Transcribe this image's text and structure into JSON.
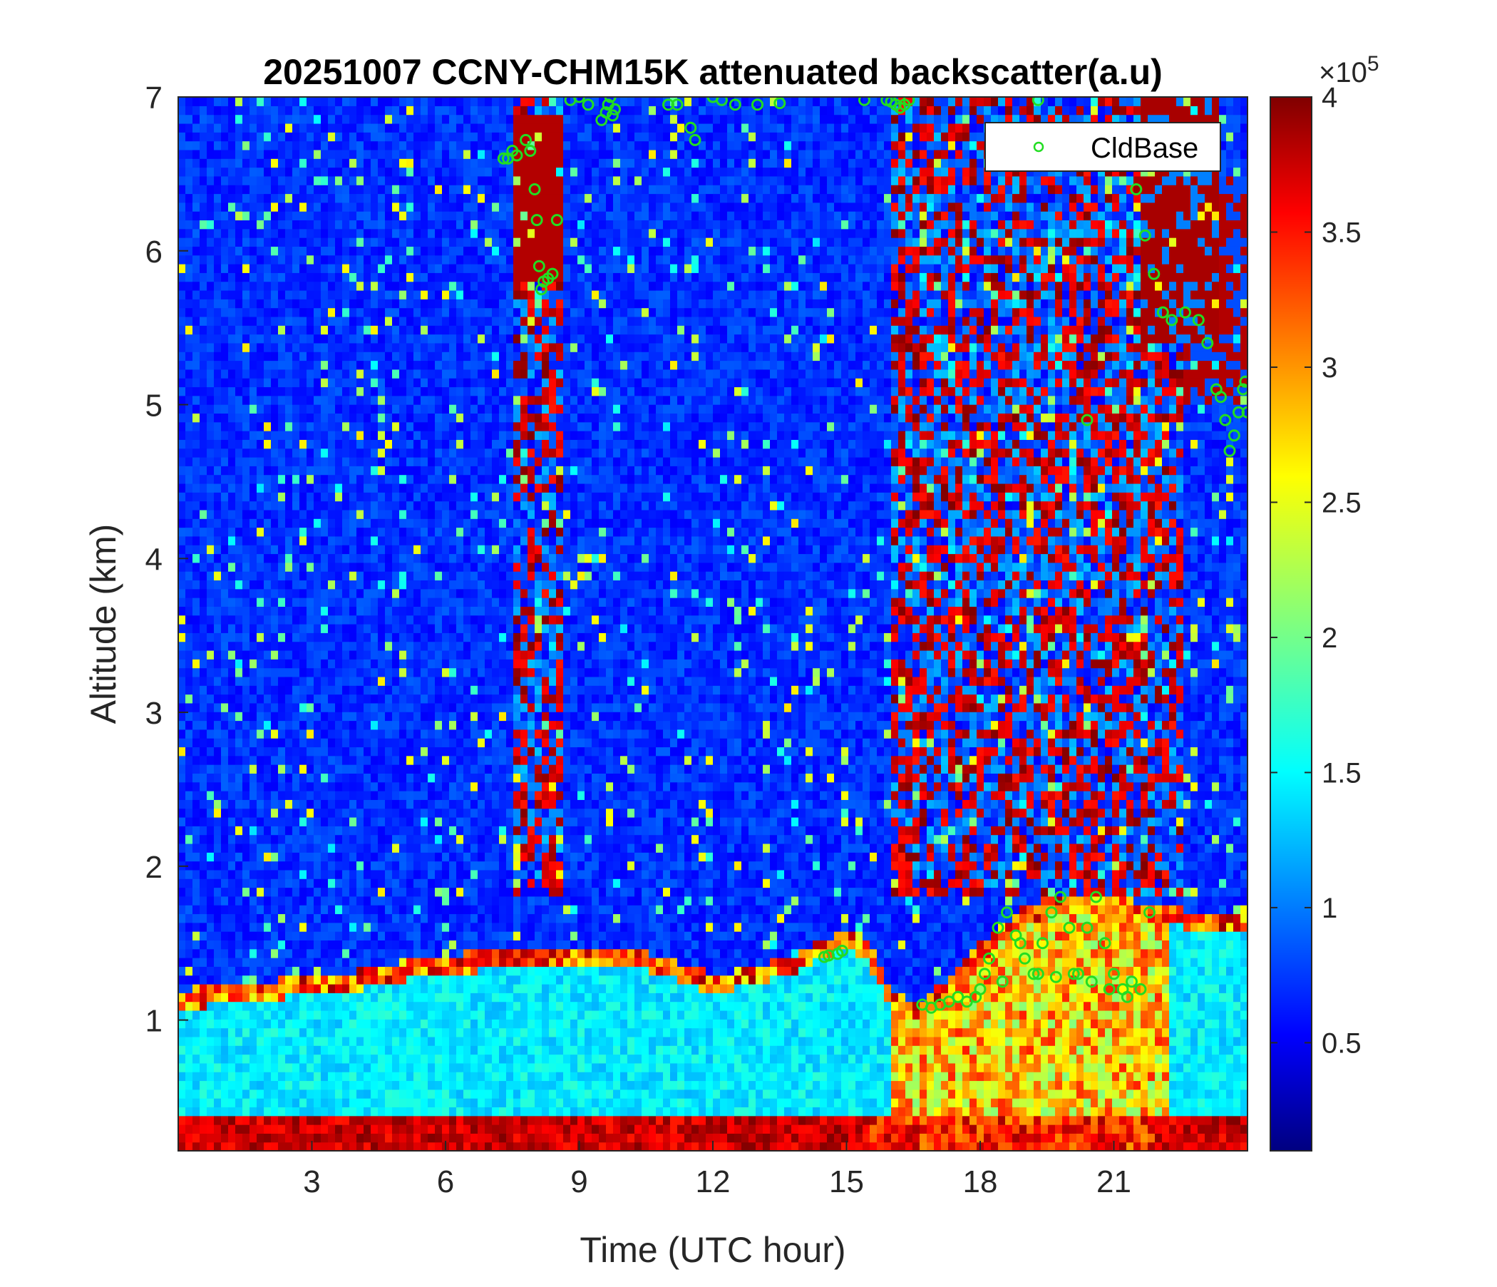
{
  "chart_data": {
    "type": "heatmap",
    "title": "20251007 CCNY-CHM15K attenuated backscatter(a.u)",
    "xlabel": "Time (UTC hour)",
    "ylabel": "Altitude (km)",
    "xlim": [
      0,
      24
    ],
    "ylim": [
      0.15,
      7
    ],
    "x_ticks": [
      3,
      6,
      9,
      12,
      15,
      18,
      21
    ],
    "y_ticks": [
      1,
      2,
      3,
      4,
      5,
      6,
      7
    ],
    "colormap": "jet",
    "colorbar": {
      "ticks": [
        0.5,
        1,
        1.5,
        2,
        2.5,
        3,
        3.5,
        4
      ],
      "tick_labels": [
        "0.5",
        "1",
        "1.5",
        "2",
        "2.5",
        "3",
        "3.5",
        "4"
      ],
      "exponent_prefix": "×10",
      "exponent_power": "5",
      "range": [
        0.1,
        4
      ]
    },
    "legend": {
      "entries": [
        "CldBase"
      ],
      "position": "top-right",
      "marker_color": "#22dd22"
    },
    "boundary_layer_top_km": {
      "hours": [
        0,
        1,
        2,
        3,
        4,
        5,
        6,
        7,
        8,
        9,
        10,
        11,
        12,
        13,
        14,
        15,
        15.5,
        16,
        16.5,
        17,
        18,
        19,
        20,
        21,
        22,
        23,
        24
      ],
      "values": [
        1.2,
        1.22,
        1.25,
        1.3,
        1.32,
        1.38,
        1.42,
        1.45,
        1.47,
        1.48,
        1.48,
        1.4,
        1.3,
        1.35,
        1.45,
        1.6,
        1.5,
        1.2,
        1.1,
        1.2,
        1.5,
        1.75,
        1.82,
        1.8,
        1.75,
        1.7,
        1.68
      ]
    },
    "series": [
      {
        "name": "CldBase",
        "type": "scatter",
        "x": [
          7.3,
          7.4,
          7.5,
          7.6,
          7.8,
          7.9,
          8.0,
          8.05,
          8.1,
          8.15,
          8.2,
          8.3,
          8.4,
          8.5,
          8.8,
          9.0,
          9.2,
          9.5,
          9.6,
          9.65,
          9.7,
          9.75,
          9.8,
          11.0,
          11.2,
          11.5,
          11.6,
          12.0,
          12.2,
          12.5,
          13.0,
          13.5,
          14.5,
          14.6,
          14.8,
          14.9,
          15.4,
          15.9,
          16.0,
          16.1,
          16.2,
          16.3,
          16.4,
          16.7,
          16.9,
          17.1,
          17.3,
          17.5,
          17.7,
          17.9,
          18.0,
          18.2,
          18.4,
          18.6,
          18.8,
          19.0,
          19.2,
          19.4,
          19.6,
          19.8,
          20.0,
          20.2,
          20.4,
          20.6,
          20.8,
          21.0,
          21.2,
          21.4,
          21.6,
          21.8,
          18.1,
          18.5,
          18.9,
          19.3,
          19.7,
          20.1,
          20.5,
          20.9,
          21.3,
          21.5,
          21.7,
          21.9,
          22.1,
          22.3,
          22.6,
          22.9,
          23.1,
          23.3,
          23.4,
          23.5,
          23.6,
          23.7,
          23.8,
          23.9,
          23.95,
          24.0,
          19.3,
          20.4
        ],
        "y": [
          6.6,
          6.6,
          6.65,
          6.62,
          6.72,
          6.65,
          6.4,
          6.2,
          5.9,
          5.75,
          5.8,
          5.82,
          5.85,
          6.2,
          6.98,
          7.0,
          6.95,
          6.85,
          6.9,
          6.95,
          7.0,
          6.88,
          6.92,
          6.95,
          6.95,
          6.8,
          6.72,
          7.0,
          6.98,
          6.95,
          6.95,
          6.96,
          1.41,
          1.42,
          1.43,
          1.45,
          6.98,
          6.98,
          6.97,
          6.95,
          6.93,
          6.95,
          6.98,
          1.1,
          1.08,
          1.1,
          1.12,
          1.15,
          1.12,
          1.15,
          1.2,
          1.4,
          1.6,
          1.7,
          1.55,
          1.4,
          1.3,
          1.5,
          1.7,
          1.8,
          1.6,
          1.3,
          1.6,
          1.8,
          1.5,
          1.3,
          1.2,
          1.25,
          1.2,
          1.7,
          1.3,
          1.25,
          1.5,
          1.3,
          1.28,
          1.3,
          1.25,
          1.2,
          1.15,
          6.4,
          6.1,
          5.85,
          5.6,
          5.55,
          5.6,
          5.55,
          5.4,
          5.1,
          5.05,
          4.9,
          4.7,
          4.8,
          4.95,
          5.1,
          5.15,
          4.95,
          6.98,
          4.9
        ]
      }
    ]
  }
}
